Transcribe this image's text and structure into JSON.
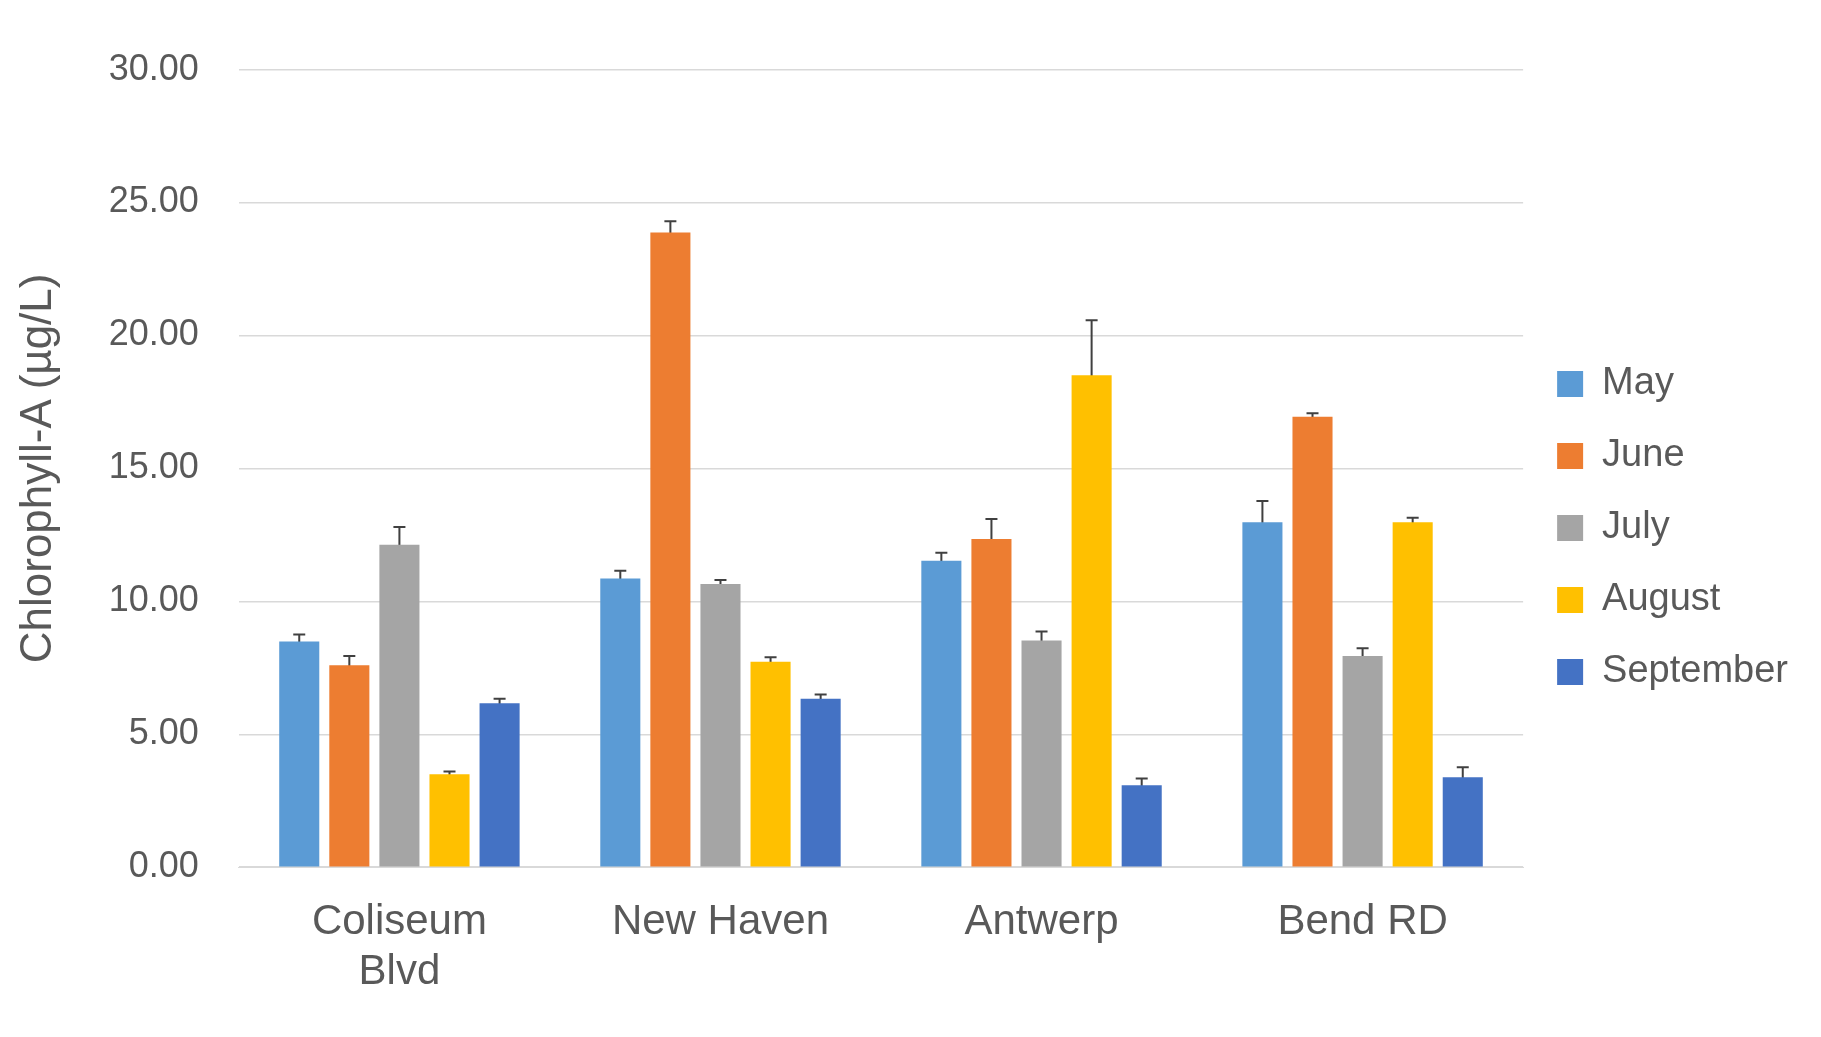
{
  "chart_data": {
    "type": "bar",
    "ylabel": "Chlorophyll-A (µg/L)",
    "categories": [
      "Coliseum Blvd",
      "New Haven",
      "Antwerp",
      "Bend RD"
    ],
    "series": [
      {
        "name": "May",
        "color": "#5b9bd5",
        "values": [
          8.49,
          10.86,
          11.53,
          12.97
        ],
        "errors": [
          0.26,
          0.29,
          0.3,
          0.8
        ]
      },
      {
        "name": "June",
        "color": "#ed7d31",
        "values": [
          7.6,
          23.87,
          12.34,
          16.94
        ],
        "errors": [
          0.34,
          0.43,
          0.76,
          0.13
        ]
      },
      {
        "name": "July",
        "color": "#a5a5a5",
        "values": [
          12.13,
          10.65,
          8.53,
          7.94
        ],
        "errors": [
          0.67,
          0.15,
          0.34,
          0.3
        ]
      },
      {
        "name": "August",
        "color": "#ffc000",
        "values": [
          3.5,
          7.73,
          18.5,
          12.97
        ],
        "errors": [
          0.1,
          0.17,
          2.07,
          0.17
        ]
      },
      {
        "name": "September",
        "color": "#4472c4",
        "values": [
          6.17,
          6.34,
          3.08,
          3.38
        ],
        "errors": [
          0.17,
          0.16,
          0.26,
          0.38
        ]
      }
    ],
    "ylim": [
      0,
      30
    ],
    "yticks": [
      {
        "value": 0,
        "label": "0.00"
      },
      {
        "value": 5,
        "label": "5.00"
      },
      {
        "value": 10,
        "label": "10.00"
      },
      {
        "value": 15,
        "label": "15.00"
      },
      {
        "value": 20,
        "label": "20.00"
      },
      {
        "value": 25,
        "label": "25.00"
      },
      {
        "value": 30,
        "label": "30.00"
      }
    ],
    "grid": "y",
    "legend": "right"
  }
}
